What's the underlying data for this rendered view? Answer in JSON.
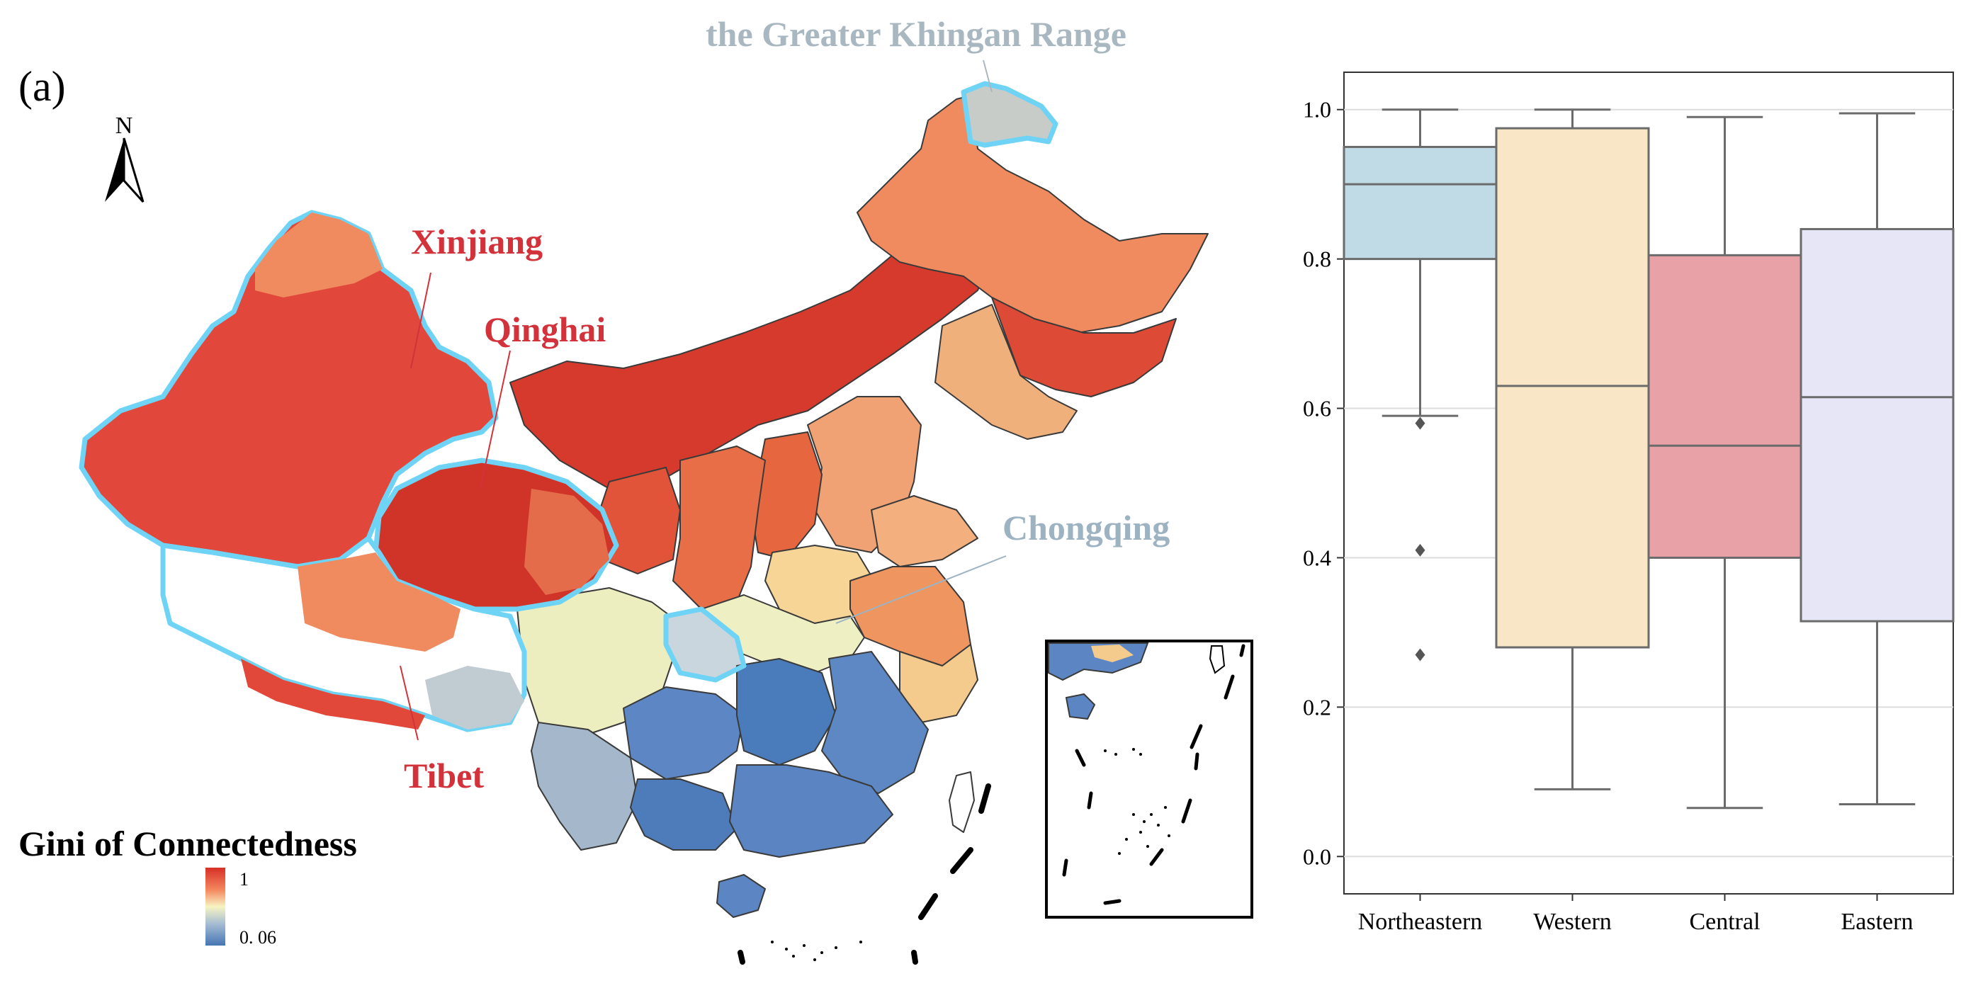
{
  "figure": {
    "panel_label": "(a)"
  },
  "map": {
    "north_label": "N",
    "annotations": {
      "khingan": "the Greater Khingan Range",
      "xinjiang": "Xinjiang",
      "qinghai": "Qinghai",
      "chongqing": "Chongqing",
      "tibet": "Tibet"
    },
    "colors": {
      "high": "#d73027",
      "mid": "#f4a582",
      "neutral": "#f7f3c2",
      "low": "#4575b4",
      "highlight_outline": "#6fd3f5",
      "label_red": "#d3323a",
      "label_grey": "#a9b8c0",
      "label_blue_grey": "#9eb3c2"
    },
    "legend": {
      "title": "Gini of Connectedness",
      "max_label": "1",
      "min_label": "0. 06",
      "max_value": 1,
      "min_value": 0.06
    }
  },
  "chart_data": {
    "type": "box",
    "categories": [
      "Northeastern",
      "Western",
      "Central",
      "Eastern"
    ],
    "series": [
      {
        "category": "Northeastern",
        "min": 0.59,
        "q1": 0.8,
        "median": 0.9,
        "q3": 0.95,
        "max": 1.0,
        "outliers": [
          0.58,
          0.41,
          0.27
        ],
        "color": "#c1dbe6"
      },
      {
        "category": "Western",
        "min": 0.09,
        "q1": 0.28,
        "median": 0.63,
        "q3": 0.975,
        "max": 1.0,
        "outliers": [],
        "color": "#f8e6c6"
      },
      {
        "category": "Central",
        "min": 0.065,
        "q1": 0.4,
        "median": 0.55,
        "q3": 0.805,
        "max": 0.99,
        "outliers": [],
        "color": "#e8a1a6"
      },
      {
        "category": "Eastern",
        "min": 0.07,
        "q1": 0.315,
        "median": 0.615,
        "q3": 0.84,
        "max": 0.995,
        "outliers": [],
        "color": "#e6e6f6"
      }
    ],
    "yticks": [
      "0.0",
      "0.2",
      "0.4",
      "0.6",
      "0.8",
      "1.0"
    ],
    "ylim": [
      -0.05,
      1.05
    ],
    "grid": true
  }
}
